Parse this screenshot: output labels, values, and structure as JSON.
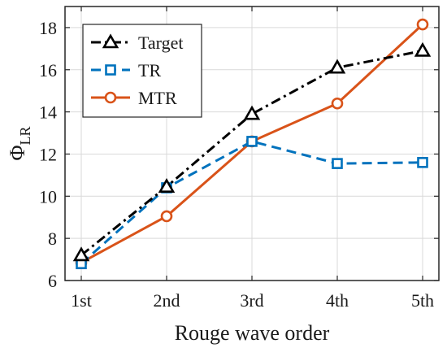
{
  "chart_data": {
    "type": "line",
    "xlabel": "Rouge wave order",
    "ylabel_main": "Φ",
    "ylabel_sub": "LR",
    "categories": [
      "1st",
      "2nd",
      "3rd",
      "4th",
      "5th"
    ],
    "ylim": [
      6,
      19
    ],
    "yticks": [
      6,
      8,
      10,
      12,
      14,
      16,
      18
    ],
    "grid": true,
    "legend_position": "top-left",
    "series": [
      {
        "name": "Target",
        "color": "#000000",
        "line_style": "dash-dot",
        "marker": "triangle",
        "values": [
          7.2,
          10.45,
          13.9,
          16.1,
          16.9
        ]
      },
      {
        "name": "TR",
        "color": "#0072BD",
        "line_style": "dashed",
        "marker": "square",
        "values": [
          6.8,
          10.4,
          12.6,
          11.55,
          11.6
        ]
      },
      {
        "name": "MTR",
        "color": "#D95319",
        "line_style": "solid",
        "marker": "circle",
        "values": [
          6.85,
          9.05,
          12.6,
          14.4,
          18.15
        ]
      }
    ]
  }
}
